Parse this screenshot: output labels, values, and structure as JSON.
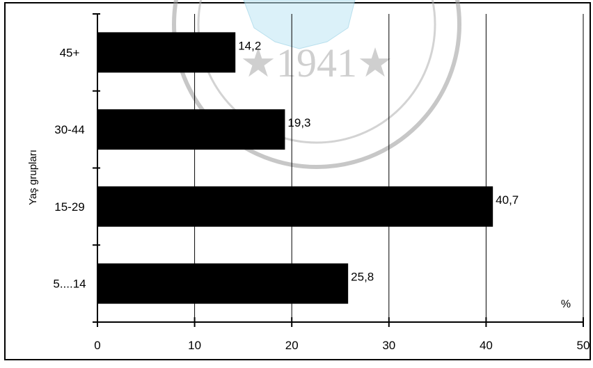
{
  "chart_data": {
    "type": "bar",
    "orientation": "horizontal",
    "categories": [
      "45+",
      "30-44",
      "15-29",
      "5....14"
    ],
    "values": [
      14.2,
      19.3,
      40.7,
      25.8
    ],
    "value_labels": [
      "14,2",
      "19,3",
      "40,7",
      "25,8"
    ],
    "ylabel": "Yaş grupları",
    "xlabel": "%",
    "xlim": [
      0,
      50
    ],
    "x_ticks": [
      0,
      10,
      20,
      30,
      40,
      50
    ],
    "x_tick_labels": [
      "0",
      "10",
      "20",
      "30",
      "40",
      "50"
    ],
    "grid": true,
    "bar_color": "#000000",
    "legend": "none"
  },
  "watermark": {
    "text": "★1941★",
    "color": "#bfe7f5"
  }
}
